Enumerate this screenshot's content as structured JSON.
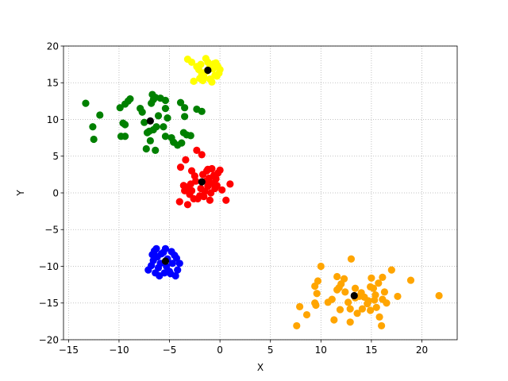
{
  "chart_data": {
    "type": "scatter",
    "title": "",
    "xlabel": "X",
    "ylabel": "Y",
    "xlim": [
      -15.5,
      23.5
    ],
    "ylim": [
      -20,
      20
    ],
    "xticks": [
      -15,
      -10,
      -5,
      0,
      5,
      10,
      15,
      20
    ],
    "yticks": [
      -20,
      -15,
      -10,
      -5,
      0,
      5,
      10,
      15,
      20
    ],
    "xtick_labels": [
      "−15",
      "−10",
      "−5",
      "0",
      "5",
      "10",
      "15",
      "20"
    ],
    "ytick_labels": [
      "−20",
      "−15",
      "−10",
      "−5",
      "0",
      "5",
      "10",
      "15",
      "20"
    ],
    "grid": true,
    "series": [
      {
        "color": "#ffff00",
        "points": [
          [
            -3.2,
            18.2
          ],
          [
            -2.8,
            17.8
          ],
          [
            -1.4,
            18.3
          ],
          [
            -0.6,
            17.6
          ],
          [
            -0.2,
            17.2
          ],
          [
            0.0,
            16.8
          ],
          [
            -0.5,
            16.0
          ],
          [
            -1.0,
            15.5
          ],
          [
            -2.6,
            15.2
          ],
          [
            -1.6,
            15.8
          ],
          [
            -2.1,
            16.8
          ],
          [
            -0.3,
            15.9
          ],
          [
            -1.0,
            17.1
          ],
          [
            -1.8,
            16.2
          ],
          [
            -0.8,
            15.1
          ],
          [
            -1.3,
            16.6
          ],
          [
            -0.4,
            17.7
          ],
          [
            -2.3,
            17.2
          ],
          [
            -1.7,
            15.3
          ],
          [
            -0.1,
            16.3
          ],
          [
            -0.7,
            16.9
          ],
          [
            -1.9,
            17.5
          ],
          [
            -1.2,
            17.8
          ],
          [
            -2.0,
            15.6
          ],
          [
            -1.5,
            16.4
          ]
        ]
      },
      {
        "color": "#008000",
        "points": [
          [
            -13.3,
            12.2
          ],
          [
            -11.9,
            10.6
          ],
          [
            -12.6,
            9.0
          ],
          [
            -12.5,
            7.3
          ],
          [
            -9.9,
            11.6
          ],
          [
            -9.4,
            12.1
          ],
          [
            -8.9,
            12.8
          ],
          [
            -9.1,
            12.5
          ],
          [
            -9.8,
            7.7
          ],
          [
            -9.4,
            7.7
          ],
          [
            -9.6,
            9.5
          ],
          [
            -9.4,
            9.3
          ],
          [
            -7.9,
            11.5
          ],
          [
            -7.7,
            11.0
          ],
          [
            -7.2,
            8.2
          ],
          [
            -7.0,
            8.4
          ],
          [
            -6.9,
            7.1
          ],
          [
            -7.3,
            6.0
          ],
          [
            -6.4,
            5.8
          ],
          [
            -6.6,
            8.6
          ],
          [
            -6.3,
            9.0
          ],
          [
            -6.8,
            12.2
          ],
          [
            -6.6,
            12.7
          ],
          [
            -6.7,
            13.4
          ],
          [
            -6.4,
            13.0
          ],
          [
            -5.9,
            12.9
          ],
          [
            -5.4,
            12.6
          ],
          [
            -5.4,
            11.5
          ],
          [
            -5.6,
            9.0
          ],
          [
            -5.4,
            7.7
          ],
          [
            -4.8,
            7.5
          ],
          [
            -4.6,
            6.9
          ],
          [
            -3.8,
            6.8
          ],
          [
            -3.3,
            7.9
          ],
          [
            -3.6,
            8.2
          ],
          [
            -3.5,
            10.4
          ],
          [
            -3.5,
            11.6
          ],
          [
            -3.9,
            12.3
          ],
          [
            -2.3,
            11.4
          ],
          [
            -1.8,
            11.1
          ],
          [
            -6.1,
            10.5
          ],
          [
            -5.2,
            10.2
          ],
          [
            -4.2,
            6.5
          ],
          [
            -2.9,
            7.8
          ],
          [
            -7.5,
            9.6
          ]
        ]
      },
      {
        "color": "#ff0000",
        "points": [
          [
            -2.3,
            5.8
          ],
          [
            -1.8,
            5.2
          ],
          [
            -3.4,
            4.5
          ],
          [
            -3.9,
            3.5
          ],
          [
            -2.8,
            3.0
          ],
          [
            -2.5,
            2.3
          ],
          [
            -2.9,
            1.2
          ],
          [
            -3.3,
            0.8
          ],
          [
            -3.5,
            0.3
          ],
          [
            -4.0,
            -1.2
          ],
          [
            -3.2,
            -1.6
          ],
          [
            -2.6,
            -0.8
          ],
          [
            -2.0,
            -0.4
          ],
          [
            -1.5,
            0.2
          ],
          [
            -1.2,
            0.9
          ],
          [
            -0.8,
            1.3
          ],
          [
            -0.4,
            1.9
          ],
          [
            0.0,
            3.1
          ],
          [
            -0.8,
            3.3
          ],
          [
            -1.3,
            3.0
          ],
          [
            -1.7,
            2.5
          ],
          [
            -1.1,
            2.0
          ],
          [
            -0.6,
            2.4
          ],
          [
            -0.3,
            1.0
          ],
          [
            0.2,
            0.4
          ],
          [
            0.6,
            -1.0
          ],
          [
            1.0,
            1.2
          ],
          [
            -1.0,
            -1.0
          ],
          [
            -2.2,
            -0.8
          ],
          [
            -3.6,
            1.0
          ],
          [
            -2.4,
            1.6
          ],
          [
            -1.9,
            0.6
          ],
          [
            -1.4,
            1.6
          ],
          [
            -0.9,
            0.0
          ],
          [
            -2.8,
            0.3
          ],
          [
            -1.6,
            -0.5
          ],
          [
            -0.5,
            0.6
          ],
          [
            -3.0,
            -0.2
          ],
          [
            -1.2,
            3.2
          ],
          [
            -0.2,
            2.7
          ]
        ]
      },
      {
        "color": "#0000ff",
        "points": [
          [
            -7.1,
            -10.5
          ],
          [
            -6.3,
            -7.6
          ],
          [
            -5.8,
            -8.3
          ],
          [
            -5.4,
            -7.6
          ],
          [
            -4.8,
            -8.0
          ],
          [
            -4.3,
            -8.9
          ],
          [
            -4.0,
            -9.6
          ],
          [
            -4.2,
            -10.5
          ],
          [
            -4.4,
            -11.3
          ],
          [
            -5.0,
            -10.7
          ],
          [
            -5.5,
            -10.9
          ],
          [
            -6.0,
            -11.3
          ],
          [
            -6.4,
            -10.9
          ],
          [
            -6.8,
            -9.9
          ],
          [
            -6.6,
            -9.2
          ],
          [
            -6.7,
            -8.4
          ],
          [
            -6.2,
            -8.7
          ],
          [
            -5.9,
            -9.6
          ],
          [
            -5.2,
            -9.0
          ],
          [
            -4.7,
            -9.6
          ],
          [
            -5.6,
            -8.1
          ],
          [
            -6.1,
            -10.2
          ],
          [
            -4.9,
            -11.0
          ],
          [
            -5.3,
            -10.0
          ],
          [
            -4.5,
            -8.5
          ],
          [
            -6.5,
            -7.9
          ]
        ]
      },
      {
        "color": "#ffa500",
        "points": [
          [
            7.6,
            -18.1
          ],
          [
            7.9,
            -15.5
          ],
          [
            8.6,
            -16.6
          ],
          [
            9.4,
            -15.0
          ],
          [
            9.6,
            -13.7
          ],
          [
            9.7,
            -12.0
          ],
          [
            10.0,
            -10.0
          ],
          [
            9.4,
            -12.7
          ],
          [
            9.5,
            -15.3
          ],
          [
            10.7,
            -14.9
          ],
          [
            11.1,
            -14.5
          ],
          [
            11.3,
            -17.3
          ],
          [
            11.6,
            -13.2
          ],
          [
            11.8,
            -12.9
          ],
          [
            11.6,
            -11.4
          ],
          [
            11.9,
            -15.9
          ],
          [
            12.3,
            -11.7
          ],
          [
            12.4,
            -13.5
          ],
          [
            12.9,
            -17.6
          ],
          [
            12.9,
            -15.8
          ],
          [
            13.0,
            -9.0
          ],
          [
            13.4,
            -13.0
          ],
          [
            13.4,
            -14.3
          ],
          [
            13.8,
            -14.1
          ],
          [
            14.0,
            -13.6
          ],
          [
            14.3,
            -14.2
          ],
          [
            14.6,
            -15.1
          ],
          [
            14.7,
            -14.7
          ],
          [
            14.9,
            -16.0
          ],
          [
            15.0,
            -11.6
          ],
          [
            15.2,
            -13.0
          ],
          [
            15.4,
            -13.9
          ],
          [
            15.5,
            -15.6
          ],
          [
            15.7,
            -12.3
          ],
          [
            15.8,
            -16.9
          ],
          [
            16.0,
            -18.1
          ],
          [
            16.1,
            -14.5
          ],
          [
            16.3,
            -13.5
          ],
          [
            16.5,
            -15.0
          ],
          [
            16.1,
            -11.5
          ],
          [
            17.0,
            -10.5
          ],
          [
            17.6,
            -14.1
          ],
          [
            18.9,
            -11.9
          ],
          [
            21.7,
            -14.0
          ],
          [
            12.0,
            -12.4
          ],
          [
            14.1,
            -15.8
          ],
          [
            15.3,
            -14.6
          ],
          [
            13.6,
            -16.4
          ],
          [
            14.9,
            -12.8
          ],
          [
            12.7,
            -14.9
          ]
        ]
      }
    ],
    "centers": {
      "color": "#000000",
      "points": [
        [
          -1.2,
          16.7
        ],
        [
          -6.9,
          9.8
        ],
        [
          -1.8,
          1.5
        ],
        [
          -5.4,
          -9.3
        ],
        [
          13.3,
          -14.0
        ]
      ]
    }
  }
}
